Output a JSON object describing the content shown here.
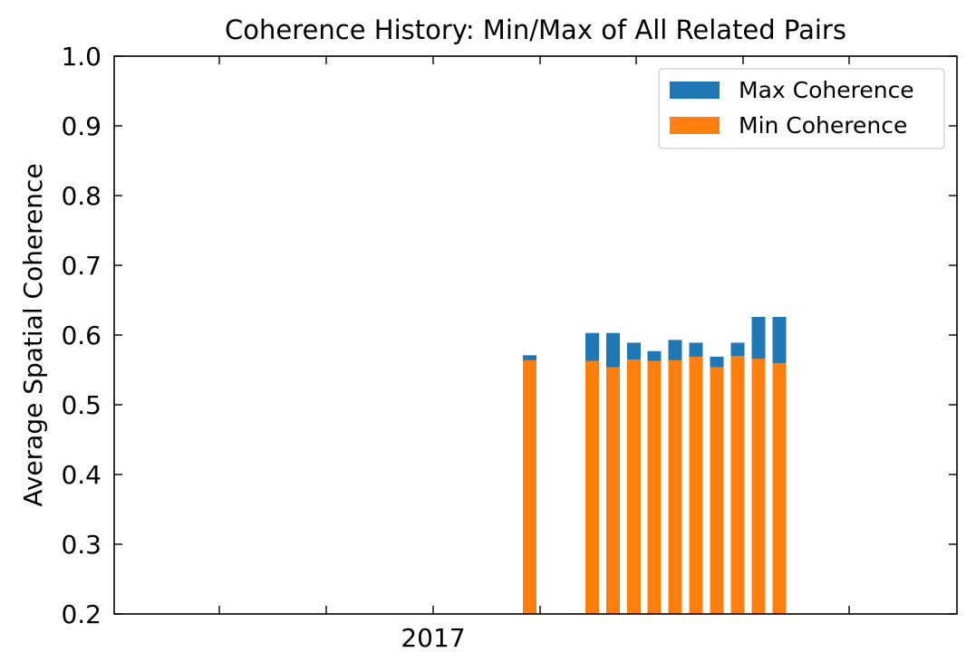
{
  "chart_data": {
    "type": "bar",
    "stacked_overlay": true,
    "title": "Coherence History: Min/Max of All Related Pairs",
    "xlabel": "",
    "ylabel": "Average Spatial Coherence",
    "ylim": [
      0.2,
      1.0
    ],
    "yticks": [
      "0.2",
      "0.3",
      "0.4",
      "0.5",
      "0.6",
      "0.7",
      "0.8",
      "0.9",
      "1.0"
    ],
    "xtick_labels": [
      "2017"
    ],
    "grid": false,
    "legend_position": "top-right",
    "series": [
      {
        "name": "Max Coherence",
        "color": "#1f77b4",
        "values": [
          0.571,
          0.603,
          0.603,
          0.589,
          0.577,
          0.593,
          0.589,
          0.569,
          0.589,
          0.626,
          0.626
        ]
      },
      {
        "name": "Min Coherence",
        "color": "#ff7f0e",
        "values": [
          0.564,
          0.563,
          0.554,
          0.565,
          0.563,
          0.564,
          0.569,
          0.554,
          0.57,
          0.566,
          0.56
        ]
      }
    ]
  }
}
